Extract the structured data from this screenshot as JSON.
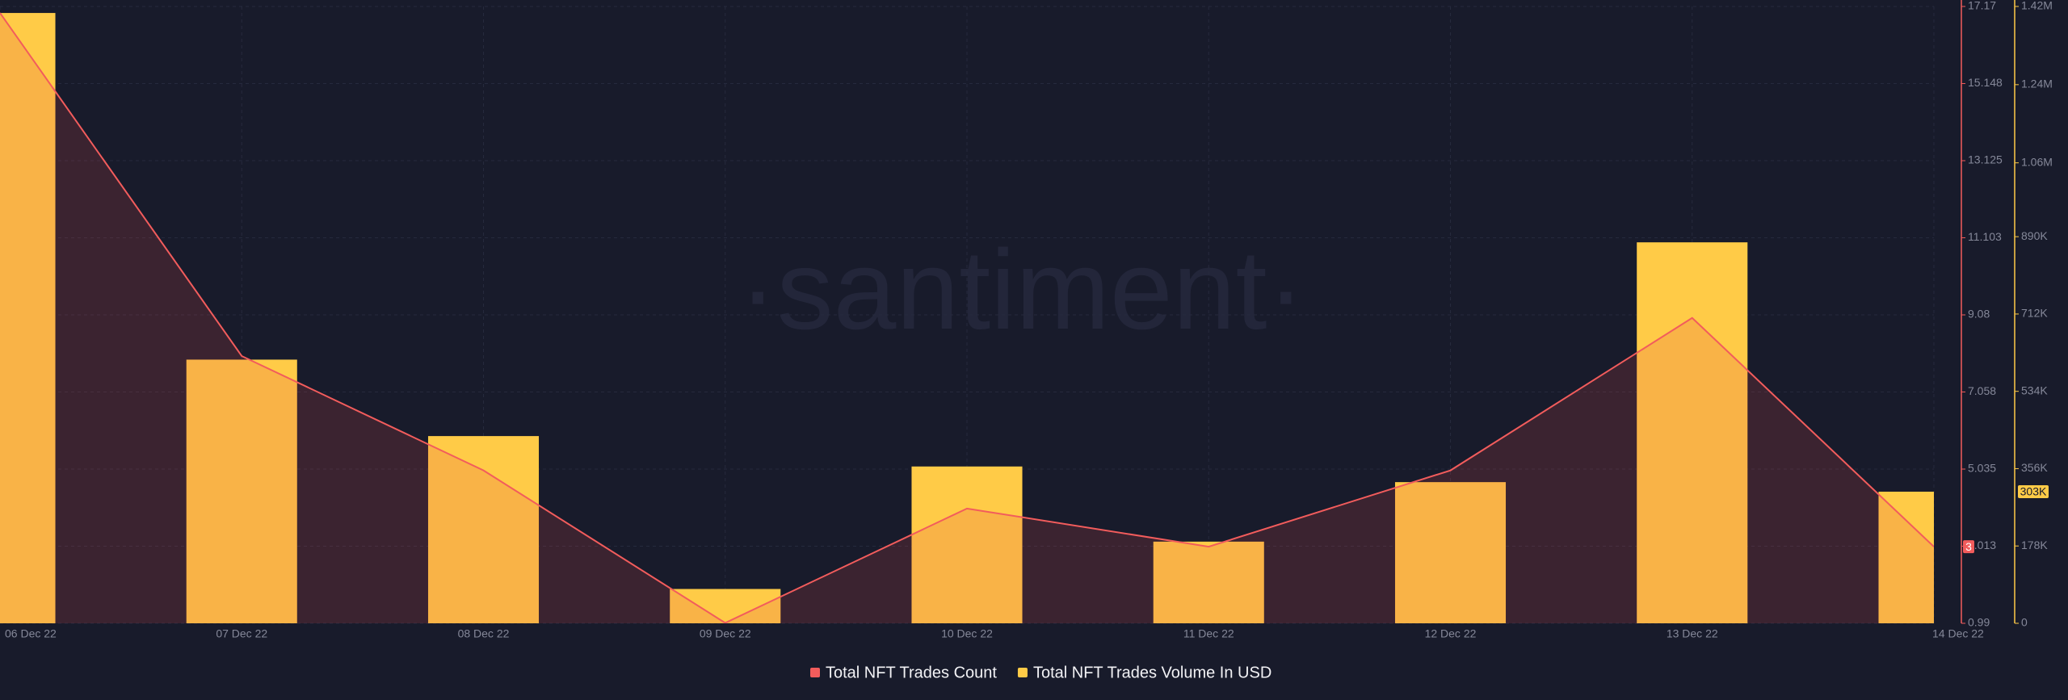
{
  "chart_data": {
    "type": "combo",
    "watermark": "·santiment·",
    "categories": [
      "06 Dec 22",
      "07 Dec 22",
      "08 Dec 22",
      "09 Dec 22",
      "10 Dec 22",
      "11 Dec 22",
      "12 Dec 22",
      "13 Dec 22",
      "14 Dec 22"
    ],
    "series": [
      {
        "name": "Total NFT Trades Count",
        "type": "line",
        "color": "#f25c5c",
        "values": [
          17,
          8,
          5,
          1,
          4,
          3,
          5,
          9,
          3
        ]
      },
      {
        "name": "Total NFT Trades Volume In USD",
        "type": "bar",
        "axis": "y2",
        "color": "#ffcb47",
        "values": [
          1405000,
          607000,
          431000,
          79000,
          361000,
          188000,
          325000,
          877000,
          303000
        ],
        "value_labels": [
          null,
          null,
          null,
          null,
          null,
          null,
          null,
          null,
          "303K"
        ]
      }
    ],
    "ylim": [
      0.99,
      17.17
    ],
    "yticks": [
      0.99,
      3.013,
      5.035,
      7.058,
      9.08,
      11.103,
      13.125,
      15.148,
      17.17
    ],
    "y2lim": [
      0,
      1420000
    ],
    "y2ticks": [
      0,
      {
        "value": 178000,
        "label": "178K"
      },
      {
        "value": 356000,
        "label": "356K"
      },
      {
        "value": 534000,
        "label": "534K"
      },
      {
        "value": 712000,
        "label": "712K"
      },
      {
        "value": 890000,
        "label": "890K"
      },
      {
        "value": 1060000,
        "label": "1.06M"
      },
      {
        "value": 1240000,
        "label": "1.24M"
      },
      {
        "value": 1420000,
        "label": "1.42M"
      }
    ],
    "grid": true
  }
}
